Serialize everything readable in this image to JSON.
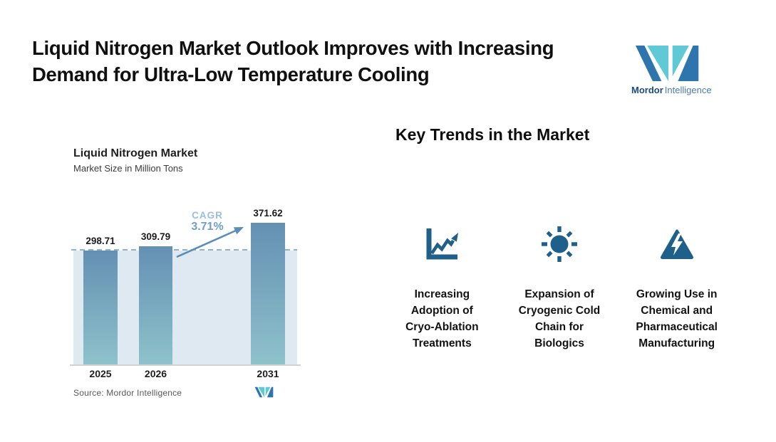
{
  "header": {
    "title_line1": "Liquid Nitrogen Market Outlook Improves with Increasing",
    "title_line2": "Demand for Ultra-Low Temperature Cooling"
  },
  "brand": {
    "logo_word_bold": "Mordor",
    "logo_word_light": "Intelligence"
  },
  "chart": {
    "title": "Liquid Nitrogen Market",
    "subtitle": "Market Size in Million Tons",
    "cagr_label": "CAGR",
    "cagr_value": "3.71%",
    "source": "Source: Mordor Intelligence"
  },
  "chart_data": {
    "type": "bar",
    "title": "Liquid Nitrogen Market",
    "subtitle": "Market Size in Million Tons",
    "categories": [
      "2025",
      "2026",
      "2031"
    ],
    "values": [
      298.71,
      309.79,
      371.62
    ],
    "value_labels": [
      "298.71",
      "309.79",
      "371.62"
    ],
    "annotations": {
      "cagr_label": "CAGR",
      "cagr_value": "3.71%",
      "dashed_reference_level": 298.71
    },
    "ylim": [
      0,
      420
    ],
    "grid": false,
    "legend": false,
    "source": "Source: Mordor Intelligence"
  },
  "trends": {
    "heading": "Key Trends in the Market",
    "items": [
      {
        "icon": "line-chart-up-icon",
        "label": "Increasing Adoption of Cryo-Ablation Treatments",
        "lines": [
          "Increasing",
          "Adoption of",
          "Cryo-Ablation",
          "Treatments"
        ]
      },
      {
        "icon": "sun-icon",
        "label": "Expansion of Cryogenic Cold Chain for Biologics",
        "lines": [
          "Expansion of",
          "Cryogenic Cold",
          "Chain for",
          "Biologics"
        ]
      },
      {
        "icon": "warning-lightning-icon",
        "label": "Growing Use in Chemical and Pharmaceutical Manufacturing",
        "lines": [
          "Growing Use in",
          "Chemical and",
          "Pharmaceutical",
          "Manufacturing"
        ]
      }
    ]
  },
  "colors": {
    "icon_blue": "#1f608a",
    "bar_top": "#6490b3",
    "bar_bottom": "#8ec2cb",
    "band": "#dee9f1",
    "dashed_line": "#8fb2cf",
    "cagr_label": "#9cbedd",
    "cagr_value": "#6f9ec7",
    "arrow": "#5c8cb8",
    "logo_blue": "#2e74ad",
    "logo_teal": "#5fc9d6",
    "logo_text_dark": "#1d4a78",
    "logo_text_light": "#4d7dad",
    "text_dark": "#111111",
    "text_gray": "#585858"
  }
}
